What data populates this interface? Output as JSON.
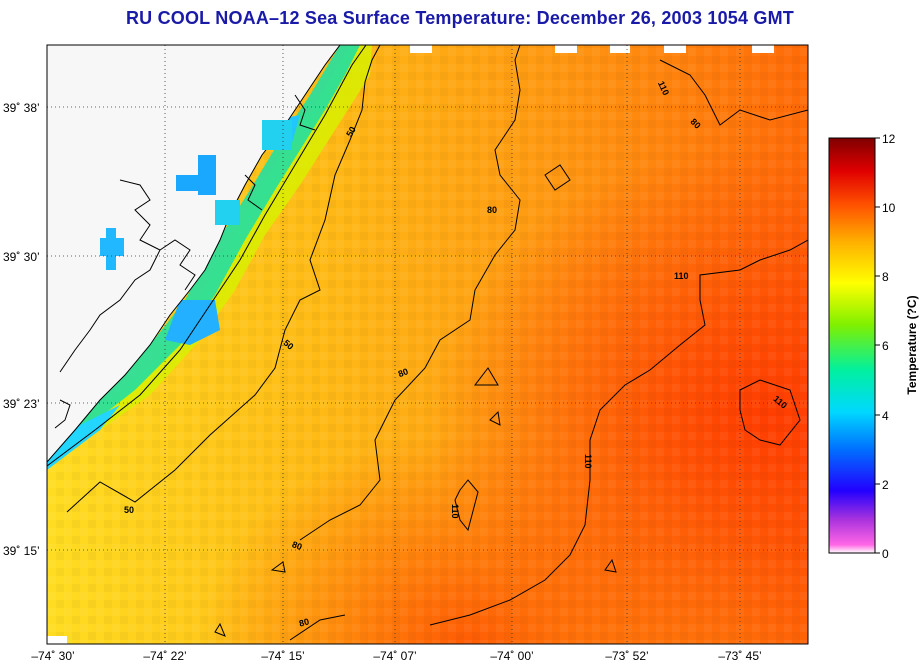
{
  "title": "RU COOL  NOAA–12  Sea Surface Temperature:  December 26, 2003 1054 GMT",
  "map": {
    "lon_labels": [
      "–74˚ 30’",
      "–74˚ 22’",
      "–74˚ 15’",
      "–74˚ 07’",
      "–74˚ 00’",
      "–73˚ 52’",
      "–73˚ 45’"
    ],
    "lat_labels": [
      "39˚ 38’",
      "39˚ 30’",
      "39˚ 23’",
      "39˚ 15’"
    ],
    "contour_labels": [
      {
        "text": "50"
      },
      {
        "text": "50"
      },
      {
        "text": "50"
      },
      {
        "text": "80"
      },
      {
        "text": "80"
      },
      {
        "text": "80"
      },
      {
        "text": "80"
      },
      {
        "text": "80"
      },
      {
        "text": "110"
      },
      {
        "text": "110"
      },
      {
        "text": "110"
      },
      {
        "text": "110"
      },
      {
        "text": "110"
      }
    ]
  },
  "colorbar": {
    "label": "Temperature (?C)",
    "ticks": [
      "12",
      "10",
      "8",
      "6",
      "4",
      "2",
      "0"
    ],
    "min": 0,
    "max": 12
  }
}
